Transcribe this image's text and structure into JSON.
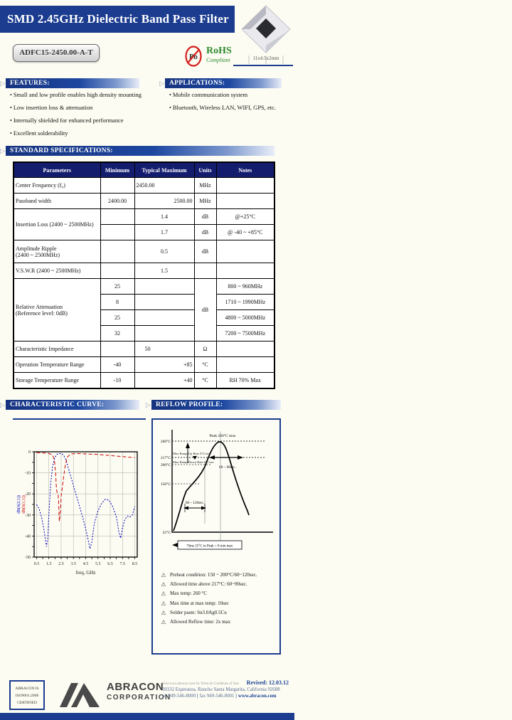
{
  "colors": {
    "navy": "#1b3c8f",
    "table_header": "#141c6e",
    "rohs_green": "#2f8a2f",
    "pb_red": "#d42020",
    "footer_blue": "#1b4298",
    "s21_blue": "#0000bb",
    "s11_red": "#cc0000"
  },
  "header": {
    "title": "SMD 2.45GHz Dielectric Band Pass Filter",
    "part_number": "ADFC15-2450.00-A-T",
    "dimension": "11x4.5x2mm",
    "pb": "Pb",
    "rohs": "RoHS",
    "rohs_sub": "Compliant"
  },
  "features": {
    "heading": "FEATURES:",
    "items": [
      "Small and low profile enables high density mounting",
      "Low insertion loss & attenuation",
      "Internally shielded for enhanced performance",
      "Excellent solderability"
    ]
  },
  "applications": {
    "heading": "APPLICATIONS:",
    "items": [
      "Mobile communication system",
      "Bluetooth, Wireless LAN, WIFI, GPS, etc."
    ]
  },
  "specifications": {
    "heading": "STANDARD SPECIFICATIONS:",
    "columns": {
      "parameters": "Parameters",
      "minimum": "Minimum",
      "typical": "Typical",
      "maximum": "Maximum",
      "units": "Units",
      "notes": "Notes"
    },
    "rows": {
      "center_freq": {
        "param": "Center Frequency (f₀)",
        "typ": "2450.00",
        "units": "MHz"
      },
      "passband": {
        "param": "Passband width",
        "min": "2400.00",
        "max": "2500.00",
        "units": "MHz"
      },
      "insertion_loss": {
        "param": "Insertion Loss (2400 ~ 2500MHz)",
        "max1": "1.4",
        "units1": "dB",
        "note1": "@+25°C",
        "max2": "1.7",
        "units2": "dB",
        "note2": "@ -40 ~ +85°C"
      },
      "ripple": {
        "param_l1": "Amplitude Ripple",
        "param_l2": "(2400 ~ 2500MHz)",
        "max": "0.5",
        "units": "dB"
      },
      "vswr": {
        "param": "V.S.W.R (2400 ~ 2500MHz)",
        "max": "1.5"
      },
      "rel_att": {
        "param_l1": "Relative Attenuation",
        "param_l2": "(Reference level: 0dB)",
        "units": "dB",
        "rows": [
          {
            "min": "25",
            "note": "800 ~ 960MHz"
          },
          {
            "min": "8",
            "note": "1710 ~ 1990MHz"
          },
          {
            "min": "25",
            "note": "4800 ~ 5000MHz"
          },
          {
            "min": "32",
            "note": "7200 ~ 7500MHz"
          }
        ]
      },
      "impedance": {
        "param": "Characteristic Impedance",
        "typ": "50",
        "units": "Ω"
      },
      "op_temp": {
        "param": "Operation Temperature Range",
        "min": "-40",
        "max": "+85",
        "units": "°C"
      },
      "st_temp": {
        "param": "Storage Temperature Range",
        "min": "-10",
        "max": "+40",
        "units": "°C",
        "notes": "RH 70% Max"
      }
    }
  },
  "characteristic_curve": {
    "heading": "CHARACTERISTIC CURVE:",
    "type": "line",
    "xlabel": "freq, GHz",
    "ylabel_s21": "dB(S(2,1))",
    "ylabel_s11": "dB(S(1,1))",
    "xlim": [
      0.3,
      8.7
    ],
    "ylim": [
      -50,
      0
    ],
    "xticks": [
      0.5,
      1.5,
      2.5,
      3.5,
      4.5,
      5.5,
      6.5,
      7.5,
      8.5
    ],
    "yticks": [
      0,
      -10,
      -20,
      -30,
      -40,
      -50
    ],
    "series": [
      {
        "name": "dB(S(2,1))",
        "color": "#0000bb",
        "dash": "2,2",
        "points": [
          [
            0.5,
            -25
          ],
          [
            0.7,
            -27
          ],
          [
            0.9,
            -31
          ],
          [
            1.1,
            -37
          ],
          [
            1.3,
            -45
          ],
          [
            1.4,
            -42
          ],
          [
            1.5,
            -30
          ],
          [
            1.65,
            -15
          ],
          [
            1.8,
            -7
          ],
          [
            2.0,
            -2.5
          ],
          [
            2.2,
            -1
          ],
          [
            2.45,
            -0.8
          ],
          [
            2.7,
            -1.5
          ],
          [
            2.9,
            -4
          ],
          [
            3.1,
            -8
          ],
          [
            3.4,
            -14
          ],
          [
            3.7,
            -20
          ],
          [
            4.0,
            -26
          ],
          [
            4.3,
            -32
          ],
          [
            4.6,
            -39
          ],
          [
            4.85,
            -46
          ],
          [
            5.0,
            -43
          ],
          [
            5.2,
            -34
          ],
          [
            5.5,
            -28
          ],
          [
            5.8,
            -24.5
          ],
          [
            6.1,
            -22.5
          ],
          [
            6.4,
            -23
          ],
          [
            6.7,
            -26
          ],
          [
            7.0,
            -31
          ],
          [
            7.2,
            -38
          ],
          [
            7.35,
            -41
          ],
          [
            7.5,
            -36
          ],
          [
            7.7,
            -32
          ],
          [
            7.9,
            -30.5
          ],
          [
            8.1,
            -31
          ],
          [
            8.3,
            -30
          ],
          [
            8.5,
            -26
          ]
        ]
      },
      {
        "name": "dB(S(1,1))",
        "color": "#cc0000",
        "dash": "5,3",
        "points": [
          [
            0.5,
            -0.4
          ],
          [
            1.0,
            -0.5
          ],
          [
            1.5,
            -0.8
          ],
          [
            1.8,
            -1.5
          ],
          [
            1.95,
            -4
          ],
          [
            2.05,
            -10
          ],
          [
            2.1,
            -16
          ],
          [
            2.15,
            -19
          ],
          [
            2.25,
            -20
          ],
          [
            2.3,
            -24
          ],
          [
            2.35,
            -33
          ],
          [
            2.45,
            -28
          ],
          [
            2.5,
            -21
          ],
          [
            2.6,
            -17
          ],
          [
            2.7,
            -12
          ],
          [
            2.85,
            -6
          ],
          [
            3.0,
            -2.5
          ],
          [
            3.3,
            -1
          ],
          [
            3.8,
            -0.8
          ],
          [
            4.5,
            -1
          ],
          [
            5.5,
            -1.3
          ],
          [
            6.5,
            -1.8
          ],
          [
            7.5,
            -2.3
          ],
          [
            8.5,
            -2.8
          ]
        ]
      }
    ]
  },
  "reflow": {
    "heading": "REFLOW PROFILE:",
    "labels": {
      "peak": "Peak 260°C max",
      "ramp_up": "Max Ramp Up Rate 3°C/sec",
      "ramp_down": "Max Ramp Down Rate 6°C/sec",
      "time_above": "60 ~ 90sec.",
      "preheat_time": "60 ~ 120sec.",
      "time_to_peak": "Time 25°C to Peak = 8 min max",
      "t260": "260°C",
      "t217": "217°C",
      "t200": "200°C",
      "t150": "150°C",
      "t25": "25°C"
    },
    "notes": [
      "Preheat condition: 150 ~ 200°C/60~120sec.",
      "Allowed time above 217°C: 60~90sec.",
      "Max temp: 260 °C",
      "Max time at max temp: 10sec",
      "Solder paste: Sn3.0Ag0.5Cu",
      "Allowed Reflow time: 2x max"
    ]
  },
  "footer": {
    "iso_l1": "ABRACON IS",
    "iso_l2": "ISO9001:2008",
    "iso_l3": "CERTIFIED",
    "company_l1": "ABRACON",
    "company_l2": "CORPORATION",
    "terms": "Visit www.abracon.com for Terms & Conditions of Sale",
    "revised": "Revised: 12.03.12",
    "address": "30332 Esperanza, Rancho Santa Margarita, California 92688",
    "tel": "tel 949-546-8000",
    "fax": "fax 949-546-8001",
    "site": "www.abracon.com"
  }
}
